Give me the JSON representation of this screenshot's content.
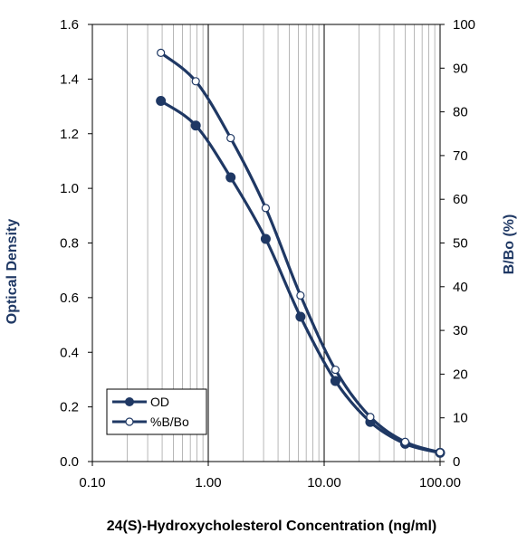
{
  "chart_data": {
    "type": "line",
    "title": "",
    "xlabel": "24(S)-Hydroxycholesterol Concentration (ng/ml)",
    "ylabel": "Optical Density",
    "y2label": "B/Bo (%)",
    "x_scale": "log",
    "xlim": [
      0.1,
      100
    ],
    "ylim": [
      0,
      1.6
    ],
    "y2lim": [
      0,
      100
    ],
    "x_tick_labels": [
      "0.10",
      "1.00",
      "10.00",
      "100.00"
    ],
    "y_tick_labels": [
      "0.0",
      "0.2",
      "0.4",
      "0.6",
      "0.8",
      "1.0",
      "1.2",
      "1.4",
      "1.6"
    ],
    "y2_tick_labels": [
      "0",
      "10",
      "20",
      "30",
      "40",
      "50",
      "60",
      "70",
      "80",
      "90",
      "100"
    ],
    "grid": true,
    "legend_position": "bottom-left",
    "series": [
      {
        "name": "OD",
        "axis": "left",
        "marker": "filled-circle",
        "color": "#1f3864",
        "x": [
          0.39,
          0.78,
          1.56,
          3.13,
          6.25,
          12.5,
          25,
          50,
          100
        ],
        "y": [
          1.32,
          1.23,
          1.04,
          0.815,
          0.53,
          0.295,
          0.145,
          0.065,
          0.032
        ]
      },
      {
        "name": "%B/Bo",
        "axis": "right",
        "marker": "open-circle",
        "color": "#1f3864",
        "x": [
          0.39,
          0.78,
          1.56,
          3.13,
          6.25,
          12.5,
          25,
          50,
          100
        ],
        "y": [
          93.5,
          87.0,
          74.0,
          58.0,
          38.0,
          21.0,
          10.2,
          4.5,
          2.1
        ]
      }
    ]
  }
}
